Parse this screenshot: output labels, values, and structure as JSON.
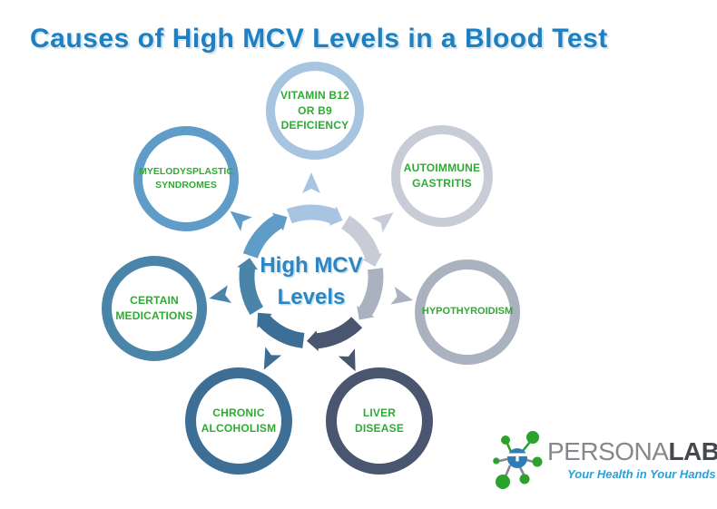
{
  "title": {
    "text": "Causes  of High MCV Levels in a Blood Test",
    "color": "#1f7fc0"
  },
  "hub": {
    "line1": "High MCV",
    "line2": "Levels",
    "text_color": "#2e86c1"
  },
  "cause_label_color": "#2faa35",
  "causes": [
    {
      "id": "vitamin-b12-or-b9-deficiency",
      "label": "VITAMIN B12\nOR B9\nDEFICIENCY",
      "color": "#a7c4e0",
      "angle_deg": 90
    },
    {
      "id": "autoimmune-gastritis",
      "label": "AUTOIMMUNE\nGASTRITIS",
      "color": "#c7ccd6",
      "angle_deg": 38
    },
    {
      "id": "hypothyroidism",
      "label": "HYPOTHYROIDISM",
      "color": "#abb2bf",
      "angle_deg": -13
    },
    {
      "id": "liver-disease",
      "label": "LIVER\nDISEASE",
      "color": "#4a5570",
      "angle_deg": 295
    },
    {
      "id": "chronic-alcoholism",
      "label": "CHRONIC\nALCOHOLISM",
      "color": "#3d6e96",
      "angle_deg": 243
    },
    {
      "id": "certain-medications",
      "label": "CERTAIN\nMEDICATIONS",
      "color": "#4a85a9",
      "angle_deg": 192
    },
    {
      "id": "myelodysplastic-syndromes",
      "label": "MYELODYSPLASTIC\nSYNDROMES",
      "color": "#5f9cc8",
      "angle_deg": 141
    }
  ],
  "logo": {
    "brand_regular": "PERSONA",
    "brand_bold": "LABS",
    "brand_regular_color": "#85888c",
    "brand_bold_color": "#45484d",
    "tagline": "Your Health in Your Hands",
    "tagline_color": "#2b9fd8",
    "icon_blue": "#2f7cb6",
    "icon_green": "#2aa32c",
    "icon_gray": "#85888c"
  }
}
